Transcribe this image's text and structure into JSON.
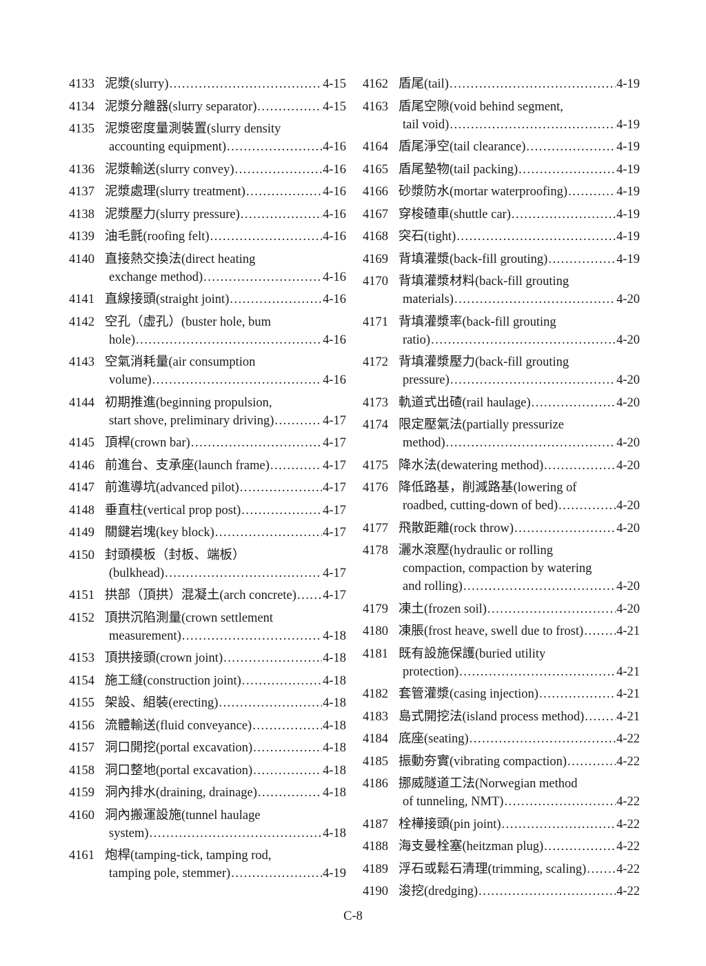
{
  "left_column": [
    {
      "num": "4133",
      "lines": [
        "泥漿(slurry)"
      ],
      "page": "4-15"
    },
    {
      "num": "4134",
      "lines": [
        "泥漿分離器(slurry separator)"
      ],
      "page": "4-15"
    },
    {
      "num": "4135",
      "lines": [
        "泥漿密度量測裝置(slurry density",
        "accounting equipment)"
      ],
      "page": "4-16"
    },
    {
      "num": "4136",
      "lines": [
        "泥漿輸送(slurry convey)"
      ],
      "page": "4-16"
    },
    {
      "num": "4137",
      "lines": [
        "泥漿處理(slurry treatment)"
      ],
      "page": "4-16"
    },
    {
      "num": "4138",
      "lines": [
        "泥漿壓力(slurry pressure)"
      ],
      "page": "4-16"
    },
    {
      "num": "4139",
      "lines": [
        "油毛氈(roofing felt)"
      ],
      "page": "4-16"
    },
    {
      "num": "4140",
      "lines": [
        "直接熱交換法(direct heating",
        "exchange method)"
      ],
      "page": "4-16"
    },
    {
      "num": "4141",
      "lines": [
        "直線接頭(straight joint)"
      ],
      "page": "4-16"
    },
    {
      "num": "4142",
      "lines": [
        "空孔（虛孔）(buster hole, bum",
        "hole)"
      ],
      "page": "4-16"
    },
    {
      "num": "4143",
      "lines": [
        "空氣消耗量(air consumption",
        "volume)"
      ],
      "page": "4-16"
    },
    {
      "num": "4144",
      "lines": [
        "初期推進(beginning propulsion,",
        "start shove, preliminary driving)"
      ],
      "page": "4-17"
    },
    {
      "num": "4145",
      "lines": [
        "頂桿(crown bar)"
      ],
      "page": "4-17"
    },
    {
      "num": "4146",
      "lines": [
        "前進台、支承座(launch frame)"
      ],
      "page": "4-17"
    },
    {
      "num": "4147",
      "lines": [
        "前進導坑(advanced pilot)"
      ],
      "page": "4-17"
    },
    {
      "num": "4148",
      "lines": [
        "垂直柱(vertical prop post)"
      ],
      "page": "4-17"
    },
    {
      "num": "4149",
      "lines": [
        "關鍵岩塊(key block)"
      ],
      "page": "4-17"
    },
    {
      "num": "4150",
      "lines": [
        "封頭模板（封板、端板）",
        "(bulkhead)"
      ],
      "page": "4-17"
    },
    {
      "num": "4151",
      "lines": [
        "拱部（頂拱）混凝土(arch concrete)"
      ],
      "page": "4-17"
    },
    {
      "num": "4152",
      "lines": [
        "頂拱沉陷測量(crown settlement",
        "measurement)"
      ],
      "page": "4-18"
    },
    {
      "num": "4153",
      "lines": [
        "頂拱接頭(crown joint)"
      ],
      "page": "4-18"
    },
    {
      "num": "4154",
      "lines": [
        "施工縫(construction joint)"
      ],
      "page": "4-18"
    },
    {
      "num": "4155",
      "lines": [
        "架設、組裝(erecting)"
      ],
      "page": "4-18"
    },
    {
      "num": "4156",
      "lines": [
        "流體輸送(fluid conveyance)"
      ],
      "page": "4-18"
    },
    {
      "num": "4157",
      "lines": [
        "洞口開挖(portal excavation)"
      ],
      "page": "4-18"
    },
    {
      "num": "4158",
      "lines": [
        "洞口整地(portal excavation)"
      ],
      "page": "4-18"
    },
    {
      "num": "4159",
      "lines": [
        "洞內排水(draining, drainage)"
      ],
      "page": "4-18"
    },
    {
      "num": "4160",
      "lines": [
        "洞內搬運設施(tunnel haulage",
        "system)"
      ],
      "page": "4-18"
    },
    {
      "num": "4161",
      "lines": [
        "炮桿(tamping-tick, tamping rod,",
        "tamping pole, stemmer)"
      ],
      "page": "4-19"
    }
  ],
  "right_column": [
    {
      "num": "4162",
      "lines": [
        "盾尾(tail)"
      ],
      "page": "4-19"
    },
    {
      "num": "4163",
      "lines": [
        "盾尾空隙(void behind segment,",
        "tail void)"
      ],
      "page": "4-19"
    },
    {
      "num": "4164",
      "lines": [
        "盾尾淨空(tail clearance)"
      ],
      "page": "4-19"
    },
    {
      "num": "4165",
      "lines": [
        "盾尾墊物(tail packing)"
      ],
      "page": "4-19"
    },
    {
      "num": "4166",
      "lines": [
        "砂漿防水(mortar waterproofing)"
      ],
      "page": "4-19"
    },
    {
      "num": "4167",
      "lines": [
        "穿梭碴車(shuttle car)"
      ],
      "page": "4-19"
    },
    {
      "num": "4168",
      "lines": [
        "突石(tight)"
      ],
      "page": "4-19"
    },
    {
      "num": "4169",
      "lines": [
        "背填灌漿(back-fill grouting)"
      ],
      "page": "4-19"
    },
    {
      "num": "4170",
      "lines": [
        "背填灌漿材料(back-fill grouting",
        "materials)"
      ],
      "page": "4-20"
    },
    {
      "num": "4171",
      "lines": [
        "背填灌漿率(back-fill grouting",
        "ratio)"
      ],
      "page": "4-20"
    },
    {
      "num": "4172",
      "lines": [
        "背填灌漿壓力(back-fill grouting",
        "pressure)"
      ],
      "page": "4-20"
    },
    {
      "num": "4173",
      "lines": [
        "軌道式出碴(rail haulage)"
      ],
      "page": "4-20"
    },
    {
      "num": "4174",
      "lines": [
        "限定壓氣法(partially pressurize",
        "method)"
      ],
      "page": "4-20"
    },
    {
      "num": "4175",
      "lines": [
        "降水法(dewatering method)"
      ],
      "page": "4-20"
    },
    {
      "num": "4176",
      "lines": [
        "降低路基，削減路基(lowering of",
        "roadbed, cutting-down of bed)"
      ],
      "page": "4-20"
    },
    {
      "num": "4177",
      "lines": [
        "飛散距離(rock throw)"
      ],
      "page": "4-20"
    },
    {
      "num": "4178",
      "lines": [
        "灑水滾壓(hydraulic or rolling",
        "compaction, compaction by watering",
        "and rolling)"
      ],
      "page": "4-20"
    },
    {
      "num": "4179",
      "lines": [
        "凍土(frozen soil)"
      ],
      "page": "4-20"
    },
    {
      "num": "4180",
      "lines": [
        "凍脹(frost heave, swell due to frost)"
      ],
      "page": "4-21"
    },
    {
      "num": "4181",
      "lines": [
        "既有設施保護(buried utility",
        "protection)"
      ],
      "page": "4-21"
    },
    {
      "num": "4182",
      "lines": [
        "套管灌漿(casing injection)"
      ],
      "page": "4-21"
    },
    {
      "num": "4183",
      "lines": [
        "島式開挖法(island process method)"
      ],
      "page": "4-21"
    },
    {
      "num": "4184",
      "lines": [
        "底座(seating)"
      ],
      "page": "4-22"
    },
    {
      "num": "4185",
      "lines": [
        "振動夯實(vibrating compaction)"
      ],
      "page": "4-22"
    },
    {
      "num": "4186",
      "lines": [
        "挪威隧道工法(Norwegian method",
        "of tunneling, NMT)"
      ],
      "page": "4-22"
    },
    {
      "num": "4187",
      "lines": [
        "栓樺接頭(pin joint)"
      ],
      "page": "4-22"
    },
    {
      "num": "4188",
      "lines": [
        "海支曼栓塞(heitzman plug)"
      ],
      "page": "4-22"
    },
    {
      "num": "4189",
      "lines": [
        "浮石或鬆石清理(trimming, scaling)"
      ],
      "page": "4-22"
    },
    {
      "num": "4190",
      "lines": [
        "浚挖(dredging)"
      ],
      "page": "4-22"
    }
  ],
  "footer": {
    "page_number": "C-8"
  }
}
